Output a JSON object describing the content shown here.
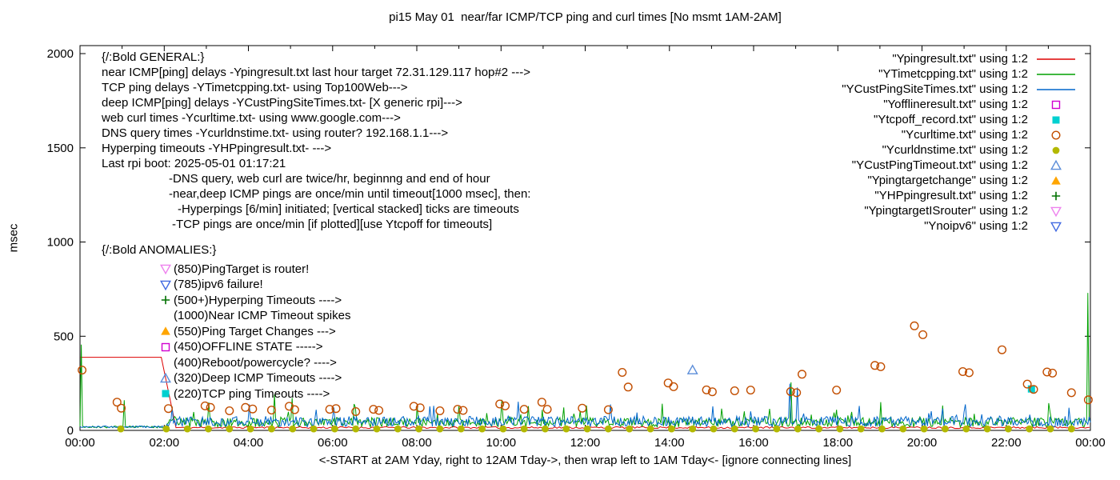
{
  "title": "pi15 May 01  near/far ICMP/TCP ping and curl times [No msmt 1AM-2AM]",
  "axes": {
    "y_label": "msec",
    "x_caption": "<-START at 2AM Yday, right to 12AM Tday->, then wrap left to 1AM Tday<- [ignore connecting lines]"
  },
  "legend": {
    "items": [
      {
        "label": "\"Ypingresult.txt\" using 1:2",
        "marker": "line",
        "color": "#dd0000"
      },
      {
        "label": "\"YTimetcpping.txt\" using 1:2",
        "marker": "line",
        "color": "#00a000"
      },
      {
        "label": "\"YCustPingSiteTimes.txt\" using 1:2",
        "marker": "line",
        "color": "#0066cc"
      },
      {
        "label": "\"Yofflineresult.txt\" using 1:2",
        "marker": "square-open",
        "color": "#d000d0"
      },
      {
        "label": "\"Ytcpoff_record.txt\" using 1:2",
        "marker": "square-filled",
        "color": "#00d0d0"
      },
      {
        "label": "\"Ycurltime.txt\" using 1:2",
        "marker": "circle-open",
        "color": "#c24e00"
      },
      {
        "label": "\"Ycurldnstime.txt\" using 1:2",
        "marker": "circle-filled",
        "color": "#b3b800"
      },
      {
        "label": "\"YCustPingTimeout.txt\" using 1:2",
        "marker": "triangle-up-open",
        "color": "#5b8dd9"
      },
      {
        "label": "\"Ypingtargetchange\" using 1:2",
        "marker": "triangle-up-filled",
        "color": "#ffa500"
      },
      {
        "label": "\"YHPpingresult.txt\" using 1:2",
        "marker": "plus",
        "color": "#007000"
      },
      {
        "label": "\"YpingtargetISrouter\" using 1:2",
        "marker": "triangle-down-open",
        "color": "#ee82ee"
      },
      {
        "label": "\"Ynoipv6\" using 1:2",
        "marker": "triangle-down-open",
        "color": "#4169e1"
      }
    ]
  },
  "annotations": {
    "general": [
      "{/:Bold GENERAL:}",
      "near ICMP[ping] delays -Ypingresult.txt last hour target 72.31.129.117 hop#2 --->",
      "TCP ping delays -YTimetcpping.txt- using Top100Web--->",
      "deep ICMP[ping] delays -YCustPingSiteTimes.txt- [X generic rpi]--->",
      "web curl times -Ycurltime.txt- using www.google.com--->",
      "DNS query times -Ycurldnstime.txt- using router? 192.168.1.1--->",
      "Hyperping timeouts -YHPpingresult.txt- --->",
      "Last rpi boot: 2025-05-01 01:17:21",
      "-DNS query, web curl are twice/hr, beginnng and end of hour",
      "-near,deep ICMP pings are once/min until timeout[1000 msec], then:",
      "-Hyperpings [6/min] initiated; [vertical stacked] ticks are timeouts",
      "-TCP pings are once/min [if plotted][use Ytcpoff for timeouts]"
    ],
    "anomalies": {
      "heading": "{/:Bold ANOMALIES:}",
      "items": [
        {
          "marker": "triangle-down-open",
          "color": "#ee82ee",
          "text": "(850)PingTarget is router!"
        },
        {
          "marker": "triangle-down-open",
          "color": "#4169e1",
          "text": "(785)ipv6 failure!"
        },
        {
          "marker": "plus",
          "color": "#007000",
          "text": "(500+)Hyperping Timeouts ---->"
        },
        {
          "marker": "none",
          "color": "",
          "text": "(1000)Near ICMP Timeout spikes"
        },
        {
          "marker": "triangle-up-filled",
          "color": "#ffa500",
          "text": "(550)Ping Target Changes --->"
        },
        {
          "marker": "square-open",
          "color": "#d000d0",
          "text": "(450)OFFLINE STATE ----->"
        },
        {
          "marker": "none",
          "color": "",
          "text": "(400)Reboot/powercycle? ---->"
        },
        {
          "marker": "triangle-up-open",
          "color": "#5b8dd9",
          "text": "(320)Deep ICMP Timeouts ---->"
        },
        {
          "marker": "square-filled",
          "color": "#00d0d0",
          "text": "(220)TCP ping Timeouts ---->"
        }
      ]
    }
  },
  "chart_data": {
    "type": "mixed",
    "title": "pi15 May 01  near/far ICMP/TCP ping and curl times [No msmt 1AM-2AM]",
    "xlabel": "<-START at 2AM Yday, right to 12AM Tday->, then wrap left to 1AM Tday<- [ignore connecting lines]",
    "ylabel": "msec",
    "x_domain_hours": [
      0,
      24
    ],
    "ylim": [
      0,
      2000
    ],
    "x_tick_labels": [
      "00:00",
      "02:00",
      "04:00",
      "06:00",
      "08:00",
      "10:00",
      "12:00",
      "14:00",
      "16:00",
      "18:00",
      "20:00",
      "22:00",
      "00:00"
    ],
    "y_tick_values": [
      0,
      500,
      1000,
      1500,
      2000
    ],
    "grid": false,
    "legend_position": "top-right",
    "series": [
      {
        "name": "Ypingresult.txt",
        "type": "line",
        "color": "#dd0000",
        "points": [
          [
            0,
            388
          ],
          [
            1.93,
            388
          ],
          [
            2.28,
            14
          ]
        ],
        "tail_noise": {
          "from": 2.28,
          "to": 24,
          "base": 10,
          "jitter": 10
        }
      },
      {
        "name": "YTimetcpping.txt",
        "type": "noisy-line",
        "color": "#00a000",
        "base": 18,
        "jitter": 50,
        "spike_prob": 0.05,
        "spike_extra": 70,
        "quiet": [
          0,
          2.05
        ],
        "quiet_base": 13,
        "quiet_jitter": 10,
        "spikes": [
          [
            0.03,
            455
          ],
          [
            1.05,
            160
          ],
          [
            3.05,
            148
          ],
          [
            4.62,
            190
          ],
          [
            5.05,
            172
          ],
          [
            6.5,
            140
          ],
          [
            8.02,
            134
          ],
          [
            9.0,
            128
          ],
          [
            10.02,
            162
          ],
          [
            11.5,
            122
          ],
          [
            12.02,
            132
          ],
          [
            13.83,
            142
          ],
          [
            16.9,
            255
          ],
          [
            19.02,
            150
          ],
          [
            20.5,
            132
          ],
          [
            23.0,
            145
          ],
          [
            23.93,
            730
          ]
        ]
      },
      {
        "name": "YCustPingSiteTimes.txt",
        "type": "noisy-line",
        "color": "#0066cc",
        "base": 20,
        "jitter": 55,
        "spike_prob": 0.04,
        "spike_extra": 60,
        "quiet": [
          0,
          2.05
        ],
        "quiet_base": 14,
        "quiet_jitter": 10,
        "spikes": [
          [
            2.2,
            128
          ],
          [
            4.02,
            138
          ],
          [
            6.02,
            122
          ],
          [
            8.3,
            128
          ],
          [
            10.42,
            152
          ],
          [
            12.6,
            138
          ],
          [
            15.02,
            128
          ],
          [
            16.85,
            248
          ],
          [
            17.05,
            228
          ],
          [
            18.5,
            130
          ],
          [
            21.02,
            138
          ],
          [
            23.5,
            120
          ]
        ]
      },
      {
        "name": "Yofflineresult.txt",
        "type": "scatter",
        "marker": "square-open",
        "color": "#d000d0",
        "points": []
      },
      {
        "name": "Ytcpoff_record.txt",
        "type": "scatter",
        "marker": "square-filled",
        "color": "#00d0d0",
        "points": [
          [
            22.6,
            220
          ]
        ]
      },
      {
        "name": "Ycurltime.txt",
        "type": "scatter",
        "marker": "circle-open",
        "color": "#c24e00",
        "points": [
          [
            0.05,
            320
          ],
          [
            0.88,
            150
          ],
          [
            0.98,
            118
          ],
          [
            2.1,
            116
          ],
          [
            2.97,
            130
          ],
          [
            3.1,
            122
          ],
          [
            3.55,
            104
          ],
          [
            3.93,
            122
          ],
          [
            4.1,
            114
          ],
          [
            4.55,
            108
          ],
          [
            4.97,
            128
          ],
          [
            5.1,
            110
          ],
          [
            5.93,
            112
          ],
          [
            6.08,
            116
          ],
          [
            6.55,
            100
          ],
          [
            6.97,
            112
          ],
          [
            7.1,
            106
          ],
          [
            7.93,
            128
          ],
          [
            8.08,
            120
          ],
          [
            8.55,
            104
          ],
          [
            8.97,
            112
          ],
          [
            9.1,
            106
          ],
          [
            9.97,
            140
          ],
          [
            10.1,
            130
          ],
          [
            10.55,
            112
          ],
          [
            10.97,
            150
          ],
          [
            11.1,
            112
          ],
          [
            11.93,
            118
          ],
          [
            12.55,
            110
          ],
          [
            12.88,
            308
          ],
          [
            13.02,
            230
          ],
          [
            13.97,
            252
          ],
          [
            14.1,
            232
          ],
          [
            14.88,
            215
          ],
          [
            15.02,
            205
          ],
          [
            15.55,
            210
          ],
          [
            15.93,
            214
          ],
          [
            16.88,
            206
          ],
          [
            17.02,
            200
          ],
          [
            17.15,
            298
          ],
          [
            17.97,
            214
          ],
          [
            18.88,
            345
          ],
          [
            19.02,
            338
          ],
          [
            19.82,
            555
          ],
          [
            20.02,
            508
          ],
          [
            20.97,
            312
          ],
          [
            21.12,
            306
          ],
          [
            21.9,
            428
          ],
          [
            22.5,
            246
          ],
          [
            22.65,
            218
          ],
          [
            22.97,
            310
          ],
          [
            23.1,
            304
          ],
          [
            23.55,
            200
          ],
          [
            23.95,
            162
          ]
        ]
      },
      {
        "name": "Ycurldnstime.txt",
        "type": "scatter",
        "marker": "circle-filled",
        "color": "#b3b800",
        "points_spec": {
          "singles": [
            [
              0.97,
              8
            ]
          ],
          "start": 2.05,
          "end": 23.95,
          "step": 0.5,
          "y": 8
        }
      },
      {
        "name": "YCustPingTimeout.txt",
        "type": "scatter",
        "marker": "triangle-up-open",
        "color": "#5b8dd9",
        "points": [
          [
            14.55,
            320
          ]
        ]
      },
      {
        "name": "Ypingtargetchange",
        "type": "scatter",
        "marker": "triangle-up-filled",
        "color": "#ffa500",
        "points": []
      },
      {
        "name": "YHPpingresult.txt",
        "type": "scatter",
        "marker": "plus",
        "color": "#007000",
        "points": []
      },
      {
        "name": "YpingtargetISrouter",
        "type": "scatter",
        "marker": "triangle-down-open",
        "color": "#ee82ee",
        "points": []
      },
      {
        "name": "Ynoipv6",
        "type": "scatter",
        "marker": "triangle-down-open",
        "color": "#4169e1",
        "points": []
      }
    ]
  }
}
